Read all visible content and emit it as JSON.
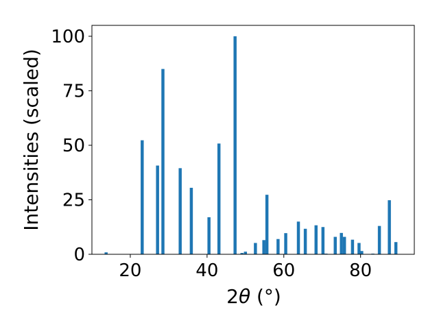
{
  "chart_data": {
    "type": "bar",
    "title": "",
    "xlabel_parts": {
      "prefix": "2",
      "symbol": "θ",
      "unit": " (°)"
    },
    "ylabel": "Intensities (scaled)",
    "xlim": [
      10,
      94
    ],
    "ylim": [
      0,
      105
    ],
    "x_ticks": [
      20,
      40,
      60,
      80
    ],
    "y_ticks": [
      0,
      25,
      50,
      75,
      100
    ],
    "bar_width": 0.8,
    "color": "#1f77b4",
    "grid": false,
    "legend": "none",
    "x": [
      13.7,
      23.1,
      27.1,
      28.5,
      33.0,
      35.9,
      40.5,
      43.1,
      47.3,
      49.1,
      50.0,
      52.6,
      54.8,
      55.6,
      58.5,
      60.5,
      63.8,
      65.6,
      68.4,
      70.2,
      71.0,
      73.4,
      75.0,
      75.8,
      77.9,
      79.6,
      80.3,
      83.2,
      84.9,
      87.5,
      89.2
    ],
    "values": [
      0.9,
      52.3,
      40.7,
      85.0,
      39.5,
      30.5,
      17.0,
      50.8,
      100.0,
      0.6,
      1.2,
      5.2,
      6.5,
      27.3,
      7.0,
      9.7,
      15.0,
      11.7,
      13.3,
      12.5,
      0.3,
      8.0,
      9.8,
      8.0,
      6.7,
      5.2,
      1.5,
      0.3,
      13.0,
      24.8,
      5.6
    ]
  }
}
